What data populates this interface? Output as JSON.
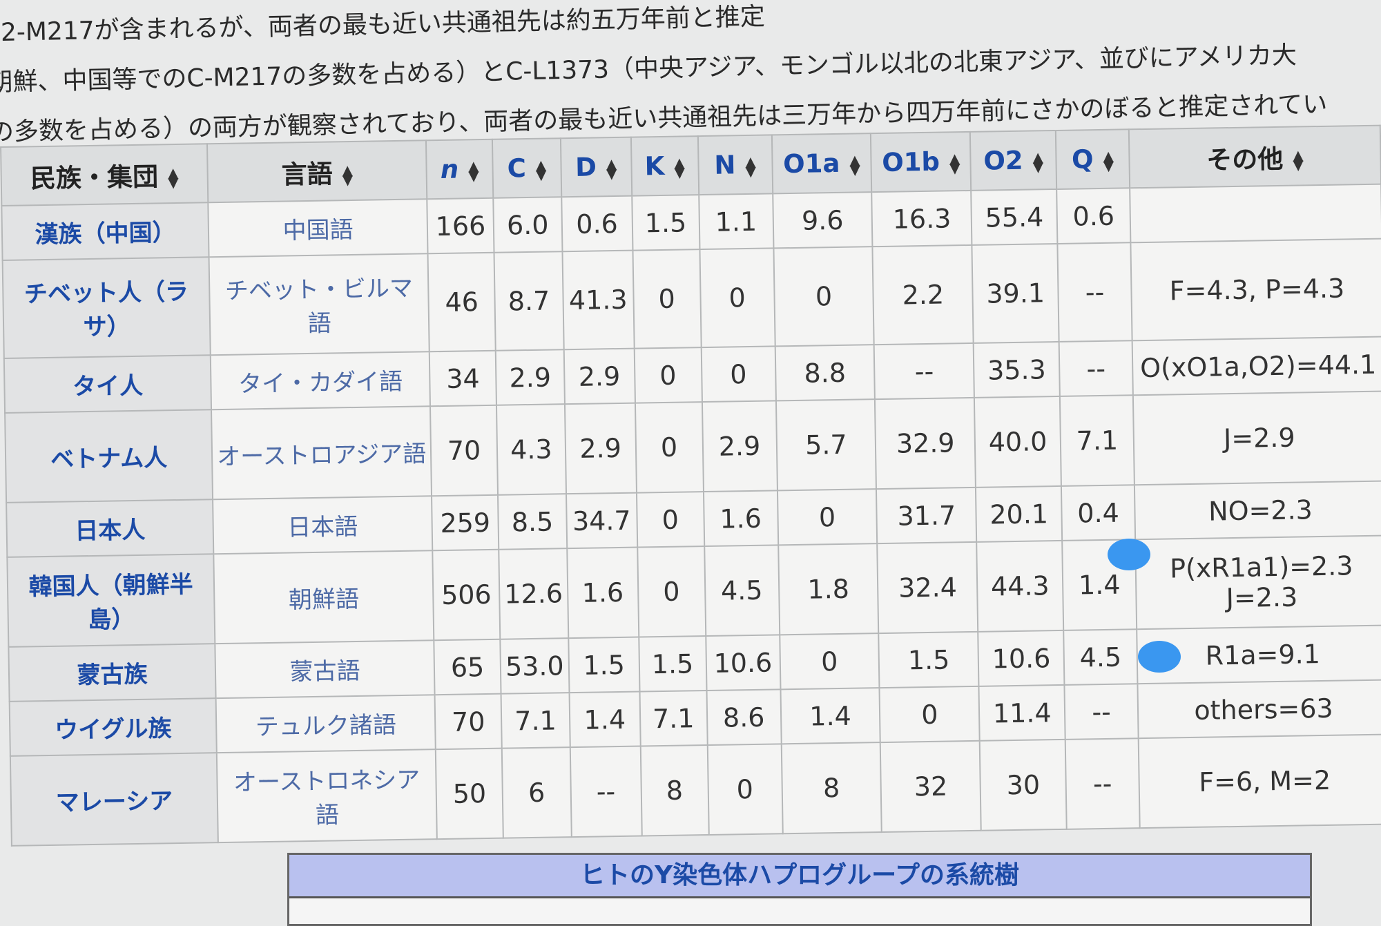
{
  "paragraph": [
    "2-M217が含まれるが、両者の最も近い共通祖先は約五万年前と推定",
    "朝鮮、中国等でのC-M217の多数を占める）とC-L1373（中央アジア、モンゴル以北の北東アジア、並びにアメリカ大",
    "の多数を占める）の両方が観察されており、両者の最も近い共通祖先は三万年から四万年前にさかのぼると推定されてい"
  ],
  "table": {
    "headers": [
      "民族・集団",
      "言語",
      "n",
      "C",
      "D",
      "K",
      "N",
      "O1a",
      "O1b",
      "O2",
      "Q",
      "その他"
    ],
    "sort_icon": "sort-arrows-icon",
    "rows": [
      {
        "group": "漢族（中国）",
        "lang": "中国語",
        "vals": [
          "166",
          "6.0",
          "0.6",
          "1.5",
          "1.1",
          "9.6",
          "16.3",
          "55.4",
          "0.6"
        ],
        "other": ""
      },
      {
        "group": "チベット人（ラサ）",
        "lang": "チベット・ビルマ語",
        "vals": [
          "46",
          "8.7",
          "41.3",
          "0",
          "0",
          "0",
          "2.2",
          "39.1",
          "--"
        ],
        "other": "F=4.3, P=4.3"
      },
      {
        "group": "タイ人",
        "lang": "タイ・カダイ語",
        "vals": [
          "34",
          "2.9",
          "2.9",
          "0",
          "0",
          "8.8",
          "--",
          "35.3",
          "--"
        ],
        "other": "O(xO1a,O2)=44.1"
      },
      {
        "group": "ベトナム人",
        "lang": "オーストロアジア語",
        "vals": [
          "70",
          "4.3",
          "2.9",
          "0",
          "2.9",
          "5.7",
          "32.9",
          "40.0",
          "7.1"
        ],
        "other": "J=2.9"
      },
      {
        "group": "日本人",
        "lang": "日本語",
        "vals": [
          "259",
          "8.5",
          "34.7",
          "0",
          "1.6",
          "0",
          "31.7",
          "20.1",
          "0.4"
        ],
        "other": "NO=2.3"
      },
      {
        "group": "韓国人（朝鮮半島）",
        "lang": "朝鮮語",
        "vals": [
          "506",
          "12.6",
          "1.6",
          "0",
          "4.5",
          "1.8",
          "32.4",
          "44.3",
          "1.4"
        ],
        "other": "P(xR1a1)=2.3 J=2.3"
      },
      {
        "group": "蒙古族",
        "lang": "蒙古語",
        "vals": [
          "65",
          "53.0",
          "1.5",
          "1.5",
          "10.6",
          "0",
          "1.5",
          "10.6",
          "4.5"
        ],
        "other": "R1a=9.1"
      },
      {
        "group": "ウイグル族",
        "lang": "テュルク諸語",
        "vals": [
          "70",
          "7.1",
          "1.4",
          "7.1",
          "8.6",
          "1.4",
          "0",
          "11.4",
          "--"
        ],
        "other": "others=63"
      },
      {
        "group": "マレーシア",
        "lang": "オーストロネシア語",
        "vals": [
          "50",
          "6",
          "--",
          "8",
          "0",
          "8",
          "32",
          "30",
          "--"
        ],
        "other": "F=6, M=2"
      }
    ]
  },
  "navbox": {
    "title": "ヒトのY染色体ハプログループの系統樹"
  },
  "colors": {
    "link": "#1b4aa6",
    "header_bg": "#dcdedf",
    "navbox_title_bg": "#b9c1ef",
    "blob": "#3a97f0"
  }
}
